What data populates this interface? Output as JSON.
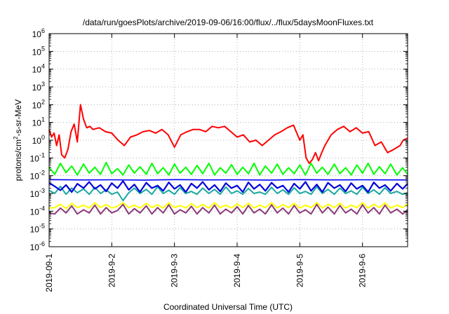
{
  "chart_data": {
    "type": "line",
    "title": "/data/run/goesPlots/archive/2019-09-06/16:00/flux/../flux/5daysMoonFluxes.txt",
    "xlabel": "Coordinated Universal Time (UTC)",
    "ylabel": {
      "pre": "protons/cm",
      "sup": "2",
      "post": "-s-sr-MeV"
    },
    "yscale": "log",
    "ylim": [
      1e-06,
      1000000.0
    ],
    "xlim": [
      0,
      5.72
    ],
    "xlim_units": "days since 2019-09-01 00:00 UTC",
    "grid": true,
    "x_ticks": [
      {
        "x": 0,
        "label": "2019-09-1"
      },
      {
        "x": 1,
        "label": "2019-9-2"
      },
      {
        "x": 2,
        "label": "2019-9-3"
      },
      {
        "x": 3,
        "label": "2019-9-4"
      },
      {
        "x": 4,
        "label": "2019-9-5"
      },
      {
        "x": 5,
        "label": "2019-9-6"
      }
    ],
    "y_ticks": [
      {
        "exp": -6,
        "base": "10",
        "sup": "-6"
      },
      {
        "exp": -5,
        "base": "10",
        "sup": "-5"
      },
      {
        "exp": -4,
        "base": "10",
        "sup": "-4"
      },
      {
        "exp": -3,
        "base": "10",
        "sup": "-3"
      },
      {
        "exp": -2,
        "base": "10",
        "sup": "-2"
      },
      {
        "exp": -1,
        "base": "10",
        "sup": "-1"
      },
      {
        "exp": 0,
        "base": "10",
        "sup": "0"
      },
      {
        "exp": 1,
        "base": "10",
        "sup": "1"
      },
      {
        "exp": 2,
        "base": "10",
        "sup": "2"
      },
      {
        "exp": 3,
        "base": "10",
        "sup": "3"
      },
      {
        "exp": 4,
        "base": "10",
        "sup": "4"
      },
      {
        "exp": 5,
        "base": "10",
        "sup": "5"
      },
      {
        "exp": 6,
        "base": "10",
        "sup": "6"
      }
    ],
    "series": [
      {
        "color": "#ffff00",
        "width": 2,
        "x": [
          0,
          0.09,
          0.18,
          0.27,
          0.36,
          0.45,
          0.55,
          0.64,
          0.73,
          0.82,
          0.91,
          1.0,
          1.09,
          1.18,
          1.27,
          1.36,
          1.45,
          1.55,
          1.64,
          1.73,
          1.82,
          1.91,
          2.0,
          2.09,
          2.18,
          2.27,
          2.36,
          2.45,
          2.55,
          2.64,
          2.73,
          2.82,
          2.91,
          3.0,
          3.09,
          3.18,
          3.27,
          3.36,
          3.45,
          3.55,
          3.64,
          3.73,
          3.82,
          3.91,
          4.0,
          4.09,
          4.18,
          4.27,
          4.36,
          4.45,
          4.55,
          4.64,
          4.73,
          4.82,
          4.91,
          5.0,
          5.09,
          5.18,
          5.27,
          5.36,
          5.45,
          5.55,
          5.64,
          5.72
        ],
        "y": [
          0.00015,
          0.00016,
          0.00025,
          0.00014,
          0.00028,
          0.00016,
          0.00022,
          0.00015,
          0.0003,
          0.00016,
          0.00024,
          0.00015,
          0.00019,
          0.0003,
          0.00016,
          0.00022,
          0.00015,
          0.00028,
          0.00016,
          0.00023,
          0.00015,
          0.0003,
          0.00016,
          0.00021,
          0.00015,
          0.00027,
          0.00016,
          0.00024,
          0.00015,
          0.0003,
          0.00016,
          0.00022,
          0.00015,
          0.00026,
          0.00016,
          0.00028,
          0.00015,
          0.00022,
          0.00016,
          0.0003,
          0.00015,
          0.00024,
          0.00016,
          0.00028,
          0.00015,
          0.00022,
          0.00016,
          0.0003,
          0.00015,
          0.00025,
          0.00016,
          0.00028,
          0.00015,
          0.00022,
          0.00016,
          0.0003,
          0.00015,
          0.00025,
          0.00016,
          0.00029,
          0.00015,
          0.00022,
          0.00016,
          0.00026
        ]
      },
      {
        "color": "#8b3a78",
        "width": 2,
        "x": [
          0,
          0.09,
          0.18,
          0.27,
          0.36,
          0.45,
          0.55,
          0.64,
          0.73,
          0.82,
          0.91,
          1.0,
          1.09,
          1.18,
          1.27,
          1.36,
          1.45,
          1.55,
          1.64,
          1.73,
          1.82,
          1.91,
          2.0,
          2.09,
          2.18,
          2.27,
          2.36,
          2.45,
          2.55,
          2.64,
          2.73,
          2.82,
          2.91,
          3.0,
          3.09,
          3.18,
          3.27,
          3.36,
          3.45,
          3.55,
          3.64,
          3.73,
          3.82,
          3.91,
          4.0,
          4.09,
          4.18,
          4.27,
          4.36,
          4.45,
          4.55,
          4.64,
          4.73,
          4.82,
          4.91,
          5.0,
          5.09,
          5.18,
          5.27,
          5.36,
          5.45,
          5.55,
          5.64,
          5.72
        ],
        "y": [
          8e-05,
          7e-05,
          0.00015,
          8e-05,
          0.0002,
          7e-05,
          0.00012,
          8e-05,
          0.00022,
          7e-05,
          0.00016,
          8e-05,
          0.00011,
          0.00024,
          7e-05,
          0.00014,
          8e-05,
          0.0002,
          7e-05,
          0.00016,
          8e-05,
          0.00023,
          7e-05,
          0.00012,
          8e-05,
          0.00019,
          7e-05,
          0.00016,
          8e-05,
          0.00022,
          7e-05,
          0.00013,
          8e-05,
          0.00018,
          7e-05,
          0.00021,
          8e-05,
          0.00013,
          7e-05,
          0.00023,
          8e-05,
          0.00015,
          7e-05,
          0.00021,
          8e-05,
          0.00012,
          7e-05,
          0.00024,
          8e-05,
          0.00017,
          7e-05,
          0.00021,
          8e-05,
          0.00013,
          7e-05,
          0.00023,
          8e-05,
          0.00016,
          7e-05,
          0.00022,
          8e-05,
          0.00013,
          7e-05,
          0.00012
        ]
      },
      {
        "color": "#1aa8a0",
        "width": 2,
        "x": [
          0,
          0.09,
          0.18,
          0.27,
          0.36,
          0.45,
          0.55,
          0.64,
          0.73,
          0.82,
          0.91,
          1.0,
          1.09,
          1.18,
          1.27,
          1.36,
          1.45,
          1.55,
          1.64,
          1.73,
          1.82,
          1.91,
          2.0,
          2.09,
          2.18,
          2.27,
          2.36,
          2.45,
          2.55,
          2.64,
          2.73,
          2.82,
          2.91,
          3.0,
          3.09,
          3.18,
          3.27,
          3.36,
          3.45,
          3.55,
          3.64,
          3.73,
          3.82,
          3.91,
          4.0,
          4.09,
          4.18,
          4.27,
          4.36,
          4.45,
          4.55,
          4.64,
          4.73,
          4.82,
          4.91,
          5.0,
          5.09,
          5.18,
          5.27,
          5.36,
          5.45,
          5.55,
          5.64,
          5.72
        ],
        "y": [
          0.0015,
          0.001,
          0.0025,
          0.0009,
          0.002,
          0.0011,
          0.0018,
          0.0009,
          0.0022,
          0.001,
          0.0016,
          0.0009,
          0.0012,
          0.0004,
          0.0011,
          0.002,
          0.001,
          0.0017,
          0.0009,
          0.0024,
          0.001,
          0.0015,
          0.0009,
          0.0021,
          0.001,
          0.0013,
          0.0009,
          0.002,
          0.001,
          0.0017,
          0.0009,
          0.0023,
          0.001,
          0.0014,
          0.0009,
          0.0019,
          0.001,
          0.0012,
          0.0009,
          0.0022,
          0.001,
          0.0016,
          0.0009,
          0.0021,
          0.001,
          0.0013,
          0.0009,
          0.0024,
          0.001,
          0.0017,
          0.0009,
          0.002,
          0.001,
          0.0014,
          0.0009,
          0.0022,
          0.001,
          0.0016,
          0.0009,
          0.0021,
          0.001,
          0.0013,
          0.0009,
          0.0011
        ]
      },
      {
        "color": "#00ff00",
        "width": 2,
        "x": [
          0,
          0.09,
          0.18,
          0.27,
          0.36,
          0.45,
          0.55,
          0.64,
          0.73,
          0.82,
          0.91,
          1.0,
          1.09,
          1.18,
          1.27,
          1.36,
          1.45,
          1.55,
          1.64,
          1.73,
          1.82,
          1.91,
          2.0,
          2.09,
          2.18,
          2.27,
          2.36,
          2.45,
          2.55,
          2.64,
          2.73,
          2.82,
          2.91,
          3.0,
          3.09,
          3.18,
          3.27,
          3.36,
          3.45,
          3.55,
          3.64,
          3.73,
          3.82,
          3.91,
          4.0,
          4.09,
          4.18,
          4.27,
          4.36,
          4.45,
          4.55,
          4.64,
          4.73,
          4.82,
          4.91,
          5.0,
          5.09,
          5.18,
          5.27,
          5.36,
          5.45,
          5.55,
          5.64,
          5.72
        ],
        "y": [
          0.03,
          0.012,
          0.05,
          0.015,
          0.035,
          0.011,
          0.045,
          0.014,
          0.03,
          0.012,
          0.055,
          0.013,
          0.025,
          0.011,
          0.04,
          0.014,
          0.032,
          0.012,
          0.05,
          0.013,
          0.028,
          0.011,
          0.045,
          0.014,
          0.03,
          0.012,
          0.038,
          0.013,
          0.05,
          0.011,
          0.028,
          0.014,
          0.042,
          0.012,
          0.03,
          0.013,
          0.05,
          0.011,
          0.035,
          0.014,
          0.045,
          0.012,
          0.028,
          0.013,
          0.04,
          0.011,
          0.05,
          0.014,
          0.03,
          0.012,
          0.045,
          0.013,
          0.028,
          0.011,
          0.04,
          0.014,
          0.05,
          0.012,
          0.032,
          0.013,
          0.045,
          0.011,
          0.028,
          0.012
        ]
      },
      {
        "color": "#0000ff",
        "width": 1.6,
        "x": [
          0,
          0.5,
          1,
          1.5,
          2,
          2.5,
          3,
          3.5,
          4,
          4.5,
          5,
          5.5,
          5.72
        ],
        "y": [
          0.006,
          0.0058,
          0.0059,
          0.0057,
          0.006,
          0.0058,
          0.0059,
          0.0057,
          0.006,
          0.0058,
          0.0059,
          0.0058,
          0.0058
        ]
      },
      {
        "color": "#0000dd",
        "width": 2.2,
        "x": [
          0,
          0.09,
          0.18,
          0.27,
          0.36,
          0.45,
          0.55,
          0.64,
          0.73,
          0.82,
          0.91,
          1.0,
          1.09,
          1.18,
          1.27,
          1.36,
          1.45,
          1.55,
          1.64,
          1.73,
          1.82,
          1.91,
          2.0,
          2.09,
          2.18,
          2.27,
          2.36,
          2.45,
          2.55,
          2.64,
          2.73,
          2.82,
          2.91,
          3.0,
          3.09,
          3.18,
          3.27,
          3.36,
          3.45,
          3.55,
          3.64,
          3.73,
          3.82,
          3.91,
          4.0,
          4.09,
          4.18,
          4.27,
          4.36,
          4.45,
          4.55,
          4.64,
          4.73,
          4.82,
          4.91,
          5.0,
          5.09,
          5.18,
          5.27,
          5.36,
          5.45,
          5.55,
          5.64,
          5.72
        ],
        "y": [
          0.004,
          0.0025,
          0.0015,
          0.003,
          0.0012,
          0.0035,
          0.002,
          0.0045,
          0.0018,
          0.003,
          0.0013,
          0.0038,
          0.002,
          0.005,
          0.0016,
          0.0032,
          0.0012,
          0.004,
          0.002,
          0.0028,
          0.0014,
          0.0042,
          0.0018,
          0.003,
          0.0012,
          0.0036,
          0.002,
          0.0045,
          0.0016,
          0.003,
          0.0013,
          0.0038,
          0.002,
          0.0028,
          0.0012,
          0.0042,
          0.0018,
          0.0032,
          0.0014,
          0.004,
          0.002,
          0.0028,
          0.0012,
          0.0036,
          0.0018,
          0.0045,
          0.0014,
          0.0032,
          0.0012,
          0.004,
          0.002,
          0.003,
          0.0013,
          0.0038,
          0.0018,
          0.0028,
          0.0012,
          0.0042,
          0.002,
          0.003,
          0.0014,
          0.0036,
          0.0018,
          0.0035
        ]
      },
      {
        "color": "#ff0000",
        "width": 2,
        "x": [
          0,
          0.04,
          0.08,
          0.12,
          0.16,
          0.2,
          0.25,
          0.3,
          0.35,
          0.4,
          0.45,
          0.5,
          0.55,
          0.6,
          0.65,
          0.7,
          0.8,
          0.9,
          1.0,
          1.1,
          1.2,
          1.3,
          1.4,
          1.5,
          1.6,
          1.7,
          1.8,
          1.9,
          2.0,
          2.1,
          2.2,
          2.3,
          2.4,
          2.5,
          2.6,
          2.7,
          2.8,
          2.9,
          3.0,
          3.1,
          3.2,
          3.3,
          3.4,
          3.5,
          3.6,
          3.7,
          3.8,
          3.9,
          4.0,
          4.05,
          4.1,
          4.15,
          4.2,
          4.25,
          4.3,
          4.35,
          4.4,
          4.5,
          4.6,
          4.7,
          4.8,
          4.9,
          5.0,
          5.1,
          5.2,
          5.3,
          5.4,
          5.5,
          5.6,
          5.65,
          5.72
        ],
        "y": [
          4,
          1.5,
          2.5,
          0.5,
          2,
          0.15,
          0.1,
          0.3,
          3,
          8,
          0.8,
          100,
          15,
          5,
          6,
          4,
          5,
          3,
          2.5,
          1,
          0.5,
          1.5,
          2,
          3,
          3.5,
          2.5,
          4,
          2,
          0.4,
          2,
          3,
          4,
          4,
          3,
          6,
          5,
          6,
          3,
          1.5,
          2,
          0.8,
          1,
          0.5,
          1,
          2,
          3,
          5,
          7,
          1,
          2,
          0.1,
          0.05,
          0.08,
          0.2,
          0.07,
          0.2,
          0.5,
          2,
          4,
          6,
          3,
          5,
          2.5,
          3,
          0.5,
          0.8,
          0.2,
          0.3,
          0.5,
          1,
          1.3
        ]
      }
    ]
  }
}
